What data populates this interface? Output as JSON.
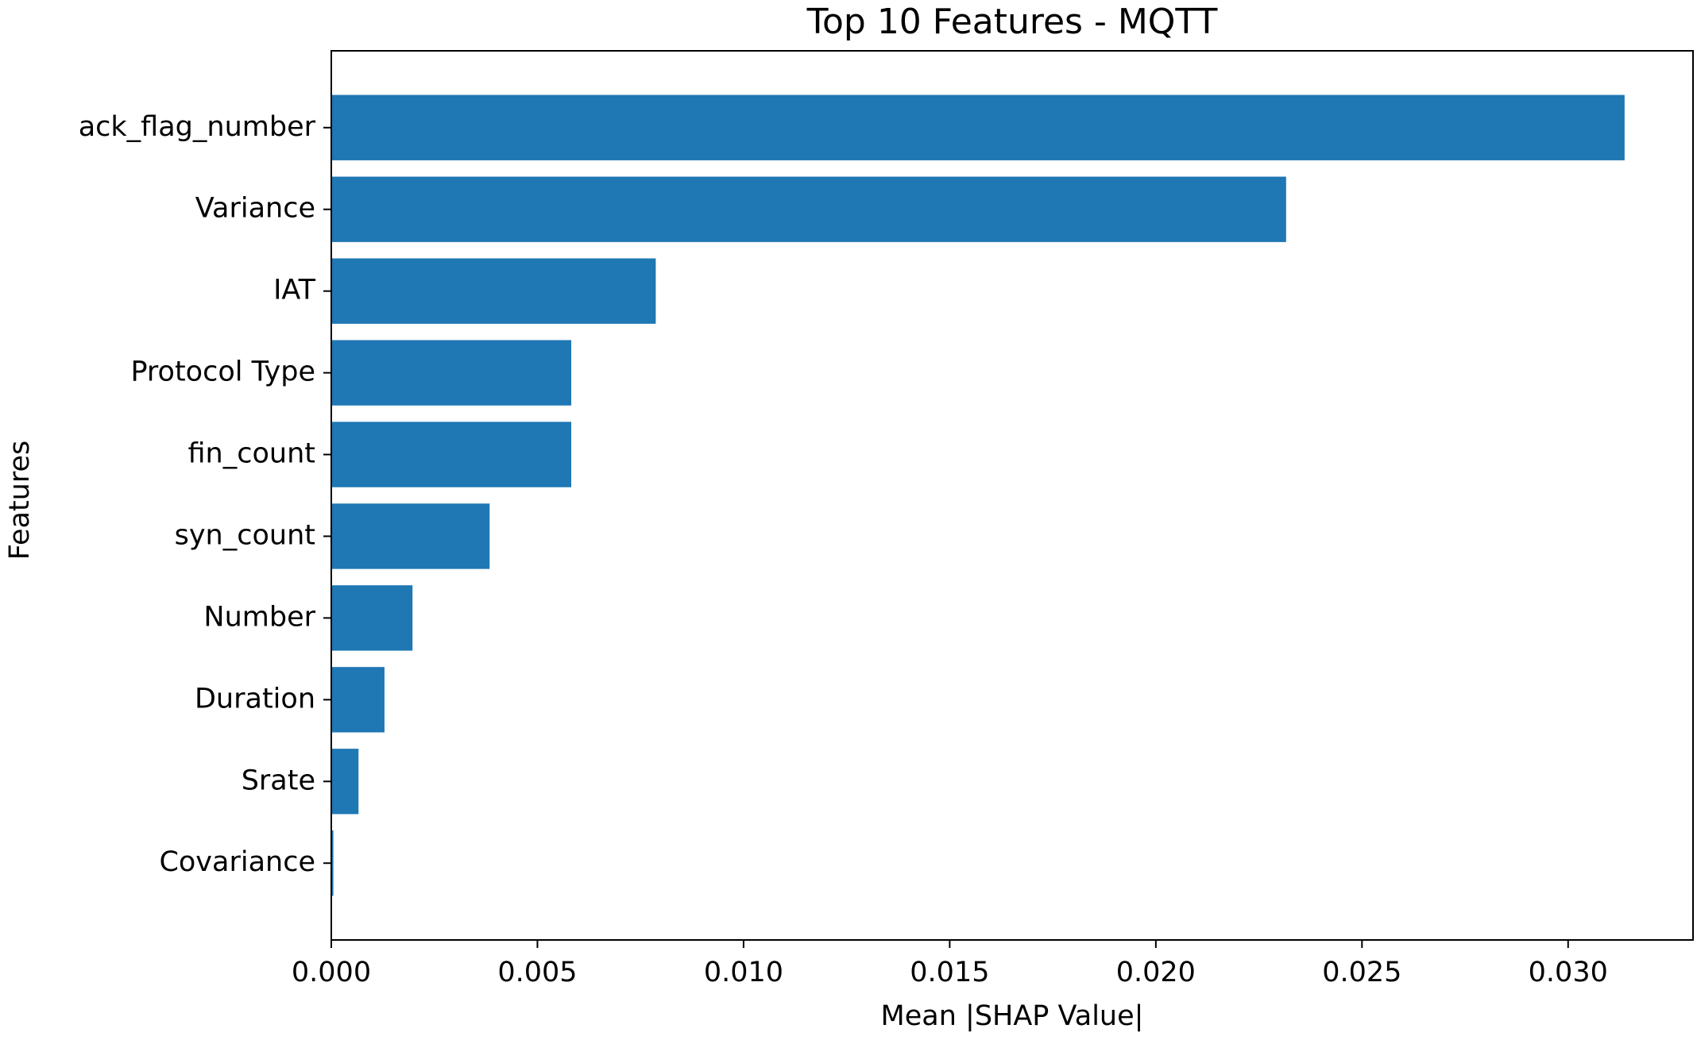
{
  "chart_data": {
    "type": "barh",
    "title": "Top 10 Features - MQTT",
    "x_label": "Mean |SHAP Value|",
    "y_label": "Features",
    "categories": [
      "ack_flag_number",
      "Variance",
      "IAT",
      "Protocol Type",
      "fin_count",
      "syn_count",
      "Number",
      "Duration",
      "Srate",
      "Covariance"
    ],
    "values": [
      0.03137,
      0.02316,
      0.00787,
      0.00582,
      0.00582,
      0.00384,
      0.00197,
      0.00129,
      0.00066,
      5e-05
    ],
    "color": "#1f77b4",
    "xlim": [
      0,
      0.03303
    ],
    "xticks": [
      {
        "value": 0,
        "label": "0.000"
      },
      {
        "value": 0.005,
        "label": "0.005"
      },
      {
        "value": 0.01,
        "label": "0.010"
      },
      {
        "value": 0.015,
        "label": "0.015"
      },
      {
        "value": 0.02,
        "label": "0.020"
      },
      {
        "value": 0.025,
        "label": "0.025"
      },
      {
        "value": 0.03,
        "label": "0.030"
      }
    ],
    "grid": false
  }
}
